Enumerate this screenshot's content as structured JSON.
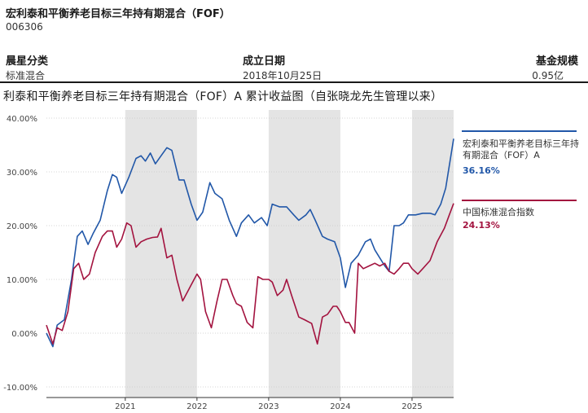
{
  "header": {
    "fund_title": "宏利泰和平衡养老目标三年持有期混合（FOF）",
    "fund_code": "006306"
  },
  "meta": [
    {
      "label": "晨星分类",
      "value": "标准混合"
    },
    {
      "label": "成立日期",
      "value": "2018年10月25日"
    },
    {
      "label": "基金规模",
      "value": "0.95亿"
    }
  ],
  "chart_data": {
    "type": "line",
    "title": "利泰和平衡养老目标三年持有期混合（FOF）A 累计收益图（自张晓龙先生管理以来）",
    "ylim": [
      -10,
      40
    ],
    "y_ticks": [
      -10,
      0,
      10,
      20,
      30,
      40
    ],
    "y_tick_labels": [
      "-10.00%",
      "0.00%",
      "10.00%",
      "20.00%",
      "30.00%",
      "40.00%"
    ],
    "xlim": [
      2019.9,
      2025.58
    ],
    "x_ticks": [
      2021,
      2022,
      2023,
      2024,
      2025
    ],
    "x_tick_labels": [
      "2021",
      "2022",
      "2023",
      "2024",
      "2025"
    ],
    "shaded_years": [
      [
        2021,
        2022
      ],
      [
        2023,
        2024
      ],
      [
        2025,
        2025.58
      ]
    ],
    "series": [
      {
        "name": "宏利泰和平衡养老目标三年持有期混合（FOF）A",
        "color": "#2157a8",
        "final_label": "36.16%",
        "points": [
          [
            2019.9,
            0
          ],
          [
            2019.99,
            -2.5
          ],
          [
            2020.05,
            1.5
          ],
          [
            2020.15,
            2.5
          ],
          [
            2020.25,
            10
          ],
          [
            2020.33,
            18
          ],
          [
            2020.4,
            19
          ],
          [
            2020.48,
            16.5
          ],
          [
            2020.55,
            18.5
          ],
          [
            2020.65,
            21
          ],
          [
            2020.75,
            26.5
          ],
          [
            2020.82,
            29.5
          ],
          [
            2020.88,
            29
          ],
          [
            2020.95,
            26
          ],
          [
            2021.05,
            29
          ],
          [
            2021.15,
            32.5
          ],
          [
            2021.22,
            33
          ],
          [
            2021.28,
            32
          ],
          [
            2021.35,
            33.5
          ],
          [
            2021.42,
            31.5
          ],
          [
            2021.5,
            33
          ],
          [
            2021.58,
            34.5
          ],
          [
            2021.65,
            34
          ],
          [
            2021.75,
            28.5
          ],
          [
            2021.82,
            28.5
          ],
          [
            2021.92,
            24
          ],
          [
            2022.0,
            21
          ],
          [
            2022.08,
            22.5
          ],
          [
            2022.18,
            28
          ],
          [
            2022.25,
            26
          ],
          [
            2022.35,
            25
          ],
          [
            2022.45,
            21
          ],
          [
            2022.55,
            18
          ],
          [
            2022.62,
            20.5
          ],
          [
            2022.72,
            22
          ],
          [
            2022.8,
            20.5
          ],
          [
            2022.9,
            21.5
          ],
          [
            2022.98,
            20
          ],
          [
            2023.05,
            24
          ],
          [
            2023.15,
            23.5
          ],
          [
            2023.25,
            23.5
          ],
          [
            2023.35,
            22
          ],
          [
            2023.42,
            21
          ],
          [
            2023.52,
            22
          ],
          [
            2023.58,
            23
          ],
          [
            2023.65,
            21
          ],
          [
            2023.75,
            18
          ],
          [
            2023.82,
            17.5
          ],
          [
            2023.92,
            17
          ],
          [
            2024.0,
            14
          ],
          [
            2024.07,
            8.5
          ],
          [
            2024.15,
            13
          ],
          [
            2024.25,
            14.5
          ],
          [
            2024.35,
            17
          ],
          [
            2024.42,
            17.5
          ],
          [
            2024.48,
            15.5
          ],
          [
            2024.55,
            14
          ],
          [
            2024.62,
            12.5
          ],
          [
            2024.68,
            11.5
          ],
          [
            2024.75,
            20
          ],
          [
            2024.82,
            20
          ],
          [
            2024.88,
            20.5
          ],
          [
            2024.95,
            22
          ],
          [
            2025.05,
            22
          ],
          [
            2025.15,
            22.3
          ],
          [
            2025.25,
            22.3
          ],
          [
            2025.32,
            22
          ],
          [
            2025.4,
            24
          ],
          [
            2025.47,
            27
          ],
          [
            2025.53,
            32
          ],
          [
            2025.58,
            36.16
          ]
        ]
      },
      {
        "name": "中国标准混合指数",
        "color": "#a3133f",
        "final_label": "24.13%",
        "points": [
          [
            2019.9,
            1.5
          ],
          [
            2019.99,
            -2
          ],
          [
            2020.05,
            1
          ],
          [
            2020.12,
            0.5
          ],
          [
            2020.2,
            4
          ],
          [
            2020.28,
            12
          ],
          [
            2020.35,
            13
          ],
          [
            2020.42,
            10
          ],
          [
            2020.5,
            11
          ],
          [
            2020.58,
            15
          ],
          [
            2020.68,
            18
          ],
          [
            2020.75,
            19
          ],
          [
            2020.82,
            19
          ],
          [
            2020.88,
            16
          ],
          [
            2020.95,
            17.5
          ],
          [
            2021.02,
            20.5
          ],
          [
            2021.08,
            20
          ],
          [
            2021.15,
            16
          ],
          [
            2021.22,
            17
          ],
          [
            2021.3,
            17.5
          ],
          [
            2021.38,
            17.8
          ],
          [
            2021.45,
            17.9
          ],
          [
            2021.5,
            19.5
          ],
          [
            2021.58,
            14
          ],
          [
            2021.65,
            14.5
          ],
          [
            2021.72,
            10
          ],
          [
            2021.8,
            6
          ],
          [
            2021.88,
            8
          ],
          [
            2021.92,
            9
          ],
          [
            2022.0,
            11
          ],
          [
            2022.05,
            10
          ],
          [
            2022.12,
            4
          ],
          [
            2022.2,
            1
          ],
          [
            2022.28,
            6
          ],
          [
            2022.35,
            10
          ],
          [
            2022.42,
            10
          ],
          [
            2022.5,
            7
          ],
          [
            2022.55,
            5.5
          ],
          [
            2022.62,
            5
          ],
          [
            2022.7,
            2
          ],
          [
            2022.78,
            1
          ],
          [
            2022.85,
            10.5
          ],
          [
            2022.92,
            10
          ],
          [
            2023.0,
            10
          ],
          [
            2023.05,
            9.5
          ],
          [
            2023.12,
            7
          ],
          [
            2023.2,
            8
          ],
          [
            2023.25,
            10
          ],
          [
            2023.32,
            7
          ],
          [
            2023.42,
            3
          ],
          [
            2023.5,
            2.5
          ],
          [
            2023.6,
            1.8
          ],
          [
            2023.68,
            -2
          ],
          [
            2023.75,
            3
          ],
          [
            2023.82,
            3.5
          ],
          [
            2023.9,
            5
          ],
          [
            2023.95,
            5
          ],
          [
            2024.0,
            4
          ],
          [
            2024.07,
            2
          ],
          [
            2024.12,
            2
          ],
          [
            2024.2,
            0
          ],
          [
            2024.25,
            13
          ],
          [
            2024.32,
            12
          ],
          [
            2024.4,
            12.5
          ],
          [
            2024.48,
            13
          ],
          [
            2024.55,
            12.5
          ],
          [
            2024.62,
            13
          ],
          [
            2024.68,
            11.5
          ],
          [
            2024.75,
            11
          ],
          [
            2024.82,
            12
          ],
          [
            2024.88,
            13
          ],
          [
            2024.95,
            13
          ],
          [
            2025.0,
            12
          ],
          [
            2025.08,
            11
          ],
          [
            2025.15,
            12
          ],
          [
            2025.25,
            13.5
          ],
          [
            2025.35,
            17
          ],
          [
            2025.45,
            19.5
          ],
          [
            2025.52,
            22
          ],
          [
            2025.58,
            24.13
          ]
        ]
      }
    ],
    "colors": {
      "shade": "#e4e4e4",
      "grid": "#c8c8c8",
      "axis": "#333333"
    }
  }
}
